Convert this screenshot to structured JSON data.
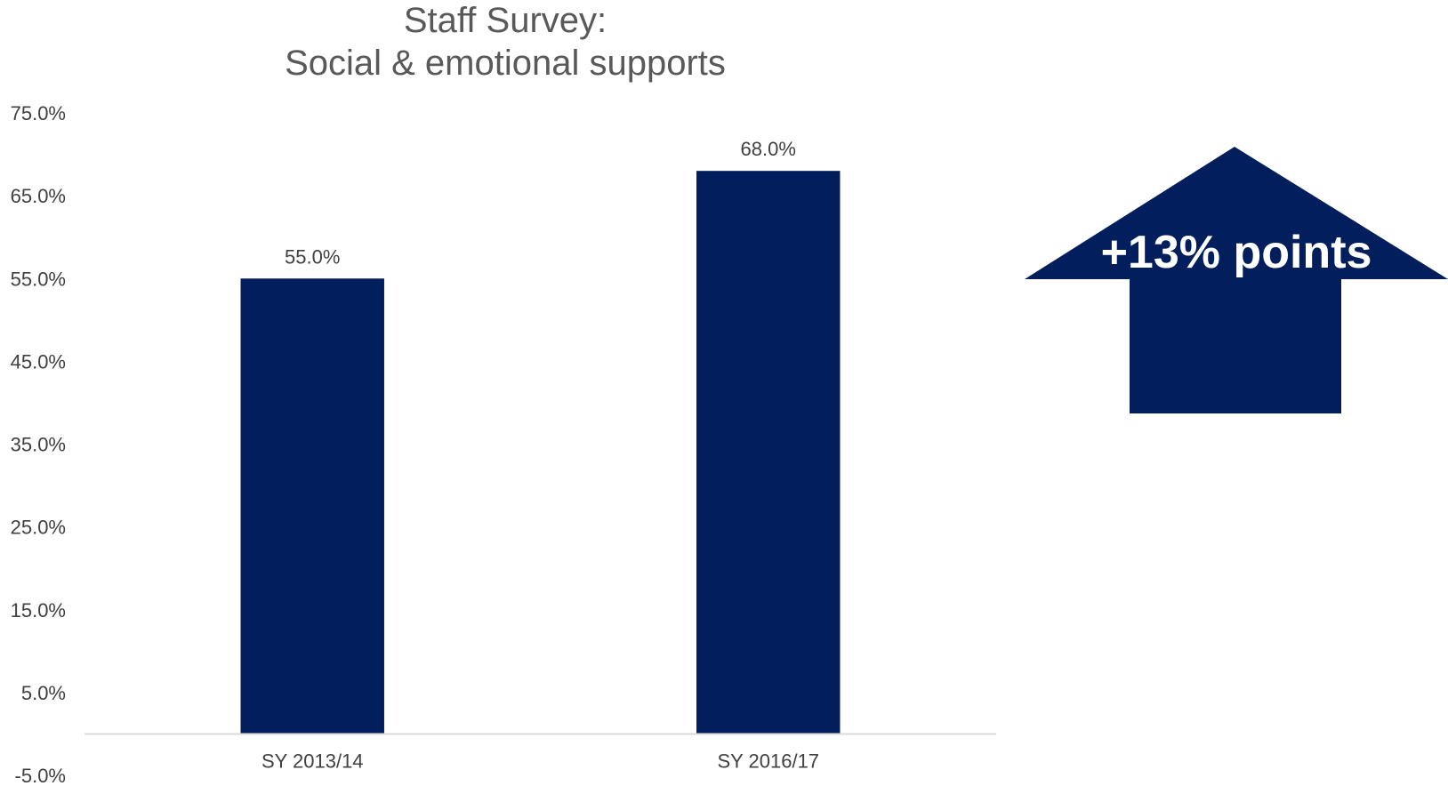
{
  "chart_data": {
    "type": "bar",
    "title_lines": [
      "Staff Survey:",
      "Social & emotional supports"
    ],
    "categories": [
      "SY 2013/14",
      "SY 2016/17"
    ],
    "values": [
      55.0,
      68.0
    ],
    "data_labels": [
      "55.0%",
      "68.0%"
    ],
    "y_ticks": [
      "75.0%",
      "65.0%",
      "55.0%",
      "45.0%",
      "35.0%",
      "25.0%",
      "15.0%",
      "5.0%",
      "-5.0%"
    ],
    "y_tick_values": [
      75,
      65,
      55,
      45,
      35,
      25,
      15,
      5,
      -5
    ],
    "ylim": [
      -5,
      75
    ],
    "xlabel": "",
    "ylabel": "",
    "grid": false,
    "legend": "none",
    "bar_color": "#021E5C",
    "axis_color": "#D9D9D9"
  },
  "callout": {
    "text": "+13% points",
    "shape": "up-arrow",
    "color": "#021E5C",
    "text_color": "#FFFFFF"
  }
}
